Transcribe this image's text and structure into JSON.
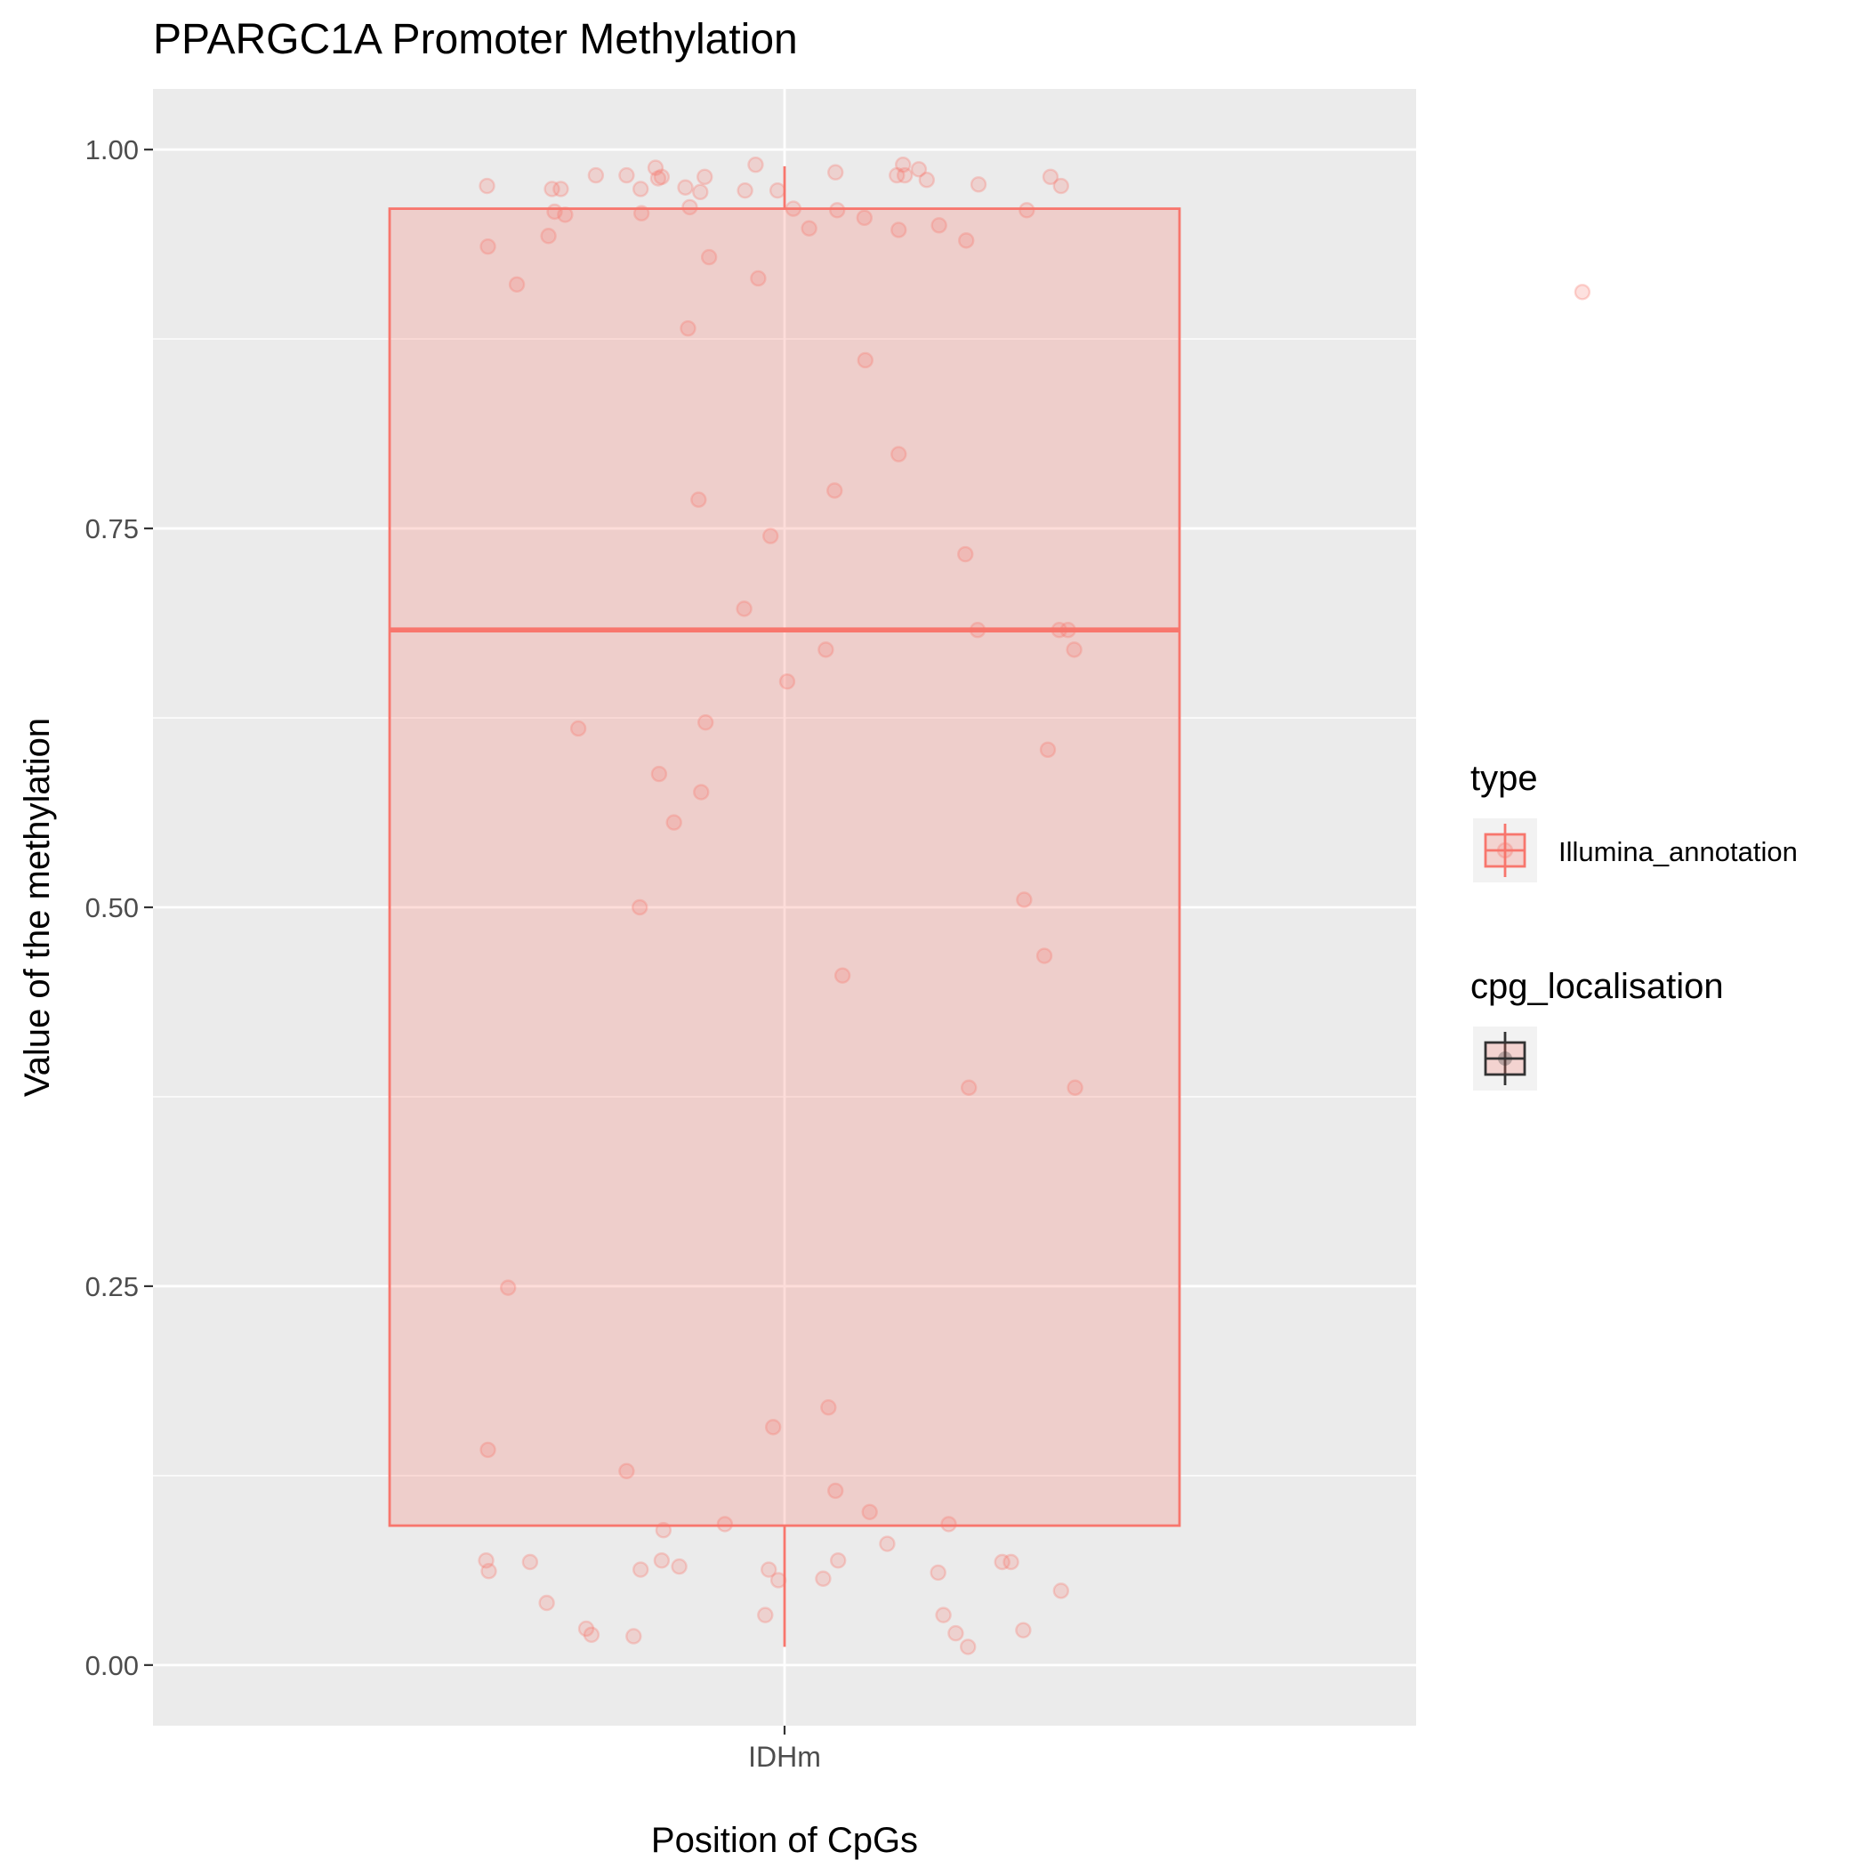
{
  "chart_data": {
    "type": "box",
    "title": "PPARGC1A Promoter Methylation",
    "xlabel": "Position of CpGs",
    "ylabel": "Value of the methylation",
    "categories": [
      "IDHm"
    ],
    "ylim": [
      -0.04,
      1.04
    ],
    "yticks": [
      0.0,
      0.25,
      0.5,
      0.75,
      1.0
    ],
    "ytick_labels": [
      "0.00",
      "0.25",
      "0.50",
      "0.75",
      "1.00"
    ],
    "grid": true,
    "legend_position": "right",
    "colors": {
      "series": "#F8766D",
      "box_fill": "#F8766D",
      "panel": "#EBEBEB",
      "grid": "#FFFFFF",
      "axis_text": "#4D4D4D",
      "legend_key": "#F2F2F2",
      "dark": "#333333"
    },
    "legends": [
      {
        "title": "type",
        "entries": [
          "Illumina_annotation"
        ]
      },
      {
        "title": "cpg_localisation",
        "entries": [
          ""
        ]
      }
    ],
    "box": {
      "category": "IDHm",
      "series": "Illumina_annotation",
      "whisker_low": 0.012,
      "q1": 0.092,
      "median": 0.683,
      "q3": 0.961,
      "whisker_high": 0.989
    },
    "points": [
      [
        -0.339,
        0.976
      ],
      [
        -0.338,
        0.936
      ],
      [
        -0.305,
        0.911
      ],
      [
        -0.269,
        0.943
      ],
      [
        -0.265,
        0.974
      ],
      [
        -0.262,
        0.959
      ],
      [
        -0.255,
        0.974
      ],
      [
        -0.25,
        0.957
      ],
      [
        -0.215,
        0.983
      ],
      [
        -0.18,
        0.983
      ],
      [
        -0.164,
        0.974
      ],
      [
        -0.163,
        0.958
      ],
      [
        -0.147,
        0.988
      ],
      [
        -0.144,
        0.981
      ],
      [
        -0.14,
        0.982
      ],
      [
        -0.113,
        0.975
      ],
      [
        -0.108,
        0.962
      ],
      [
        -0.096,
        0.972
      ],
      [
        -0.091,
        0.982
      ],
      [
        -0.086,
        0.929
      ],
      [
        -0.045,
        0.973
      ],
      [
        -0.033,
        0.99
      ],
      [
        -0.03,
        0.915
      ],
      [
        -0.008,
        0.973
      ],
      [
        0.01,
        0.961
      ],
      [
        0.028,
        0.948
      ],
      [
        0.058,
        0.985
      ],
      [
        0.06,
        0.96
      ],
      [
        0.091,
        0.955
      ],
      [
        0.128,
        0.983
      ],
      [
        0.13,
        0.947
      ],
      [
        0.135,
        0.99
      ],
      [
        0.137,
        0.983
      ],
      [
        0.153,
        0.987
      ],
      [
        0.162,
        0.98
      ],
      [
        0.176,
        0.95
      ],
      [
        0.207,
        0.94
      ],
      [
        0.221,
        0.977
      ],
      [
        0.276,
        0.96
      ],
      [
        0.303,
        0.982
      ],
      [
        0.315,
        0.976
      ],
      [
        -0.11,
        0.882
      ],
      [
        0.092,
        0.861
      ],
      [
        0.13,
        0.799
      ],
      [
        0.057,
        0.775
      ],
      [
        -0.098,
        0.769
      ],
      [
        -0.016,
        0.745
      ],
      [
        0.206,
        0.733
      ],
      [
        -0.046,
        0.697
      ],
      [
        0.22,
        0.683
      ],
      [
        0.313,
        0.683
      ],
      [
        0.323,
        0.683
      ],
      [
        0.047,
        0.67
      ],
      [
        0.33,
        0.67
      ],
      [
        0.003,
        0.649
      ],
      [
        -0.235,
        0.618
      ],
      [
        -0.09,
        0.622
      ],
      [
        0.3,
        0.604
      ],
      [
        -0.143,
        0.588
      ],
      [
        -0.095,
        0.576
      ],
      [
        -0.126,
        0.556
      ],
      [
        -0.165,
        0.5
      ],
      [
        0.273,
        0.505
      ],
      [
        0.296,
        0.468
      ],
      [
        0.066,
        0.455
      ],
      [
        0.21,
        0.381
      ],
      [
        0.331,
        0.381
      ],
      [
        0.909,
        0.906
      ],
      [
        -0.315,
        0.249
      ],
      [
        0.05,
        0.17
      ],
      [
        -0.013,
        0.157
      ],
      [
        -0.338,
        0.142
      ],
      [
        -0.18,
        0.128
      ],
      [
        0.058,
        0.115
      ],
      [
        0.097,
        0.101
      ],
      [
        -0.068,
        0.093
      ],
      [
        -0.138,
        0.089
      ],
      [
        0.187,
        0.093
      ],
      [
        -0.34,
        0.069
      ],
      [
        -0.29,
        0.068
      ],
      [
        -0.164,
        0.063
      ],
      [
        -0.14,
        0.069
      ],
      [
        -0.12,
        0.065
      ],
      [
        -0.018,
        0.063
      ],
      [
        0.061,
        0.069
      ],
      [
        0.117,
        0.08
      ],
      [
        0.175,
        0.061
      ],
      [
        0.248,
        0.068
      ],
      [
        0.258,
        0.068
      ],
      [
        -0.337,
        0.062
      ],
      [
        -0.271,
        0.041
      ],
      [
        -0.007,
        0.056
      ],
      [
        0.044,
        0.057
      ],
      [
        0.315,
        0.049
      ],
      [
        -0.226,
        0.024
      ],
      [
        -0.22,
        0.02
      ],
      [
        -0.172,
        0.019
      ],
      [
        -0.022,
        0.033
      ],
      [
        0.181,
        0.033
      ],
      [
        0.195,
        0.021
      ],
      [
        0.209,
        0.012
      ],
      [
        0.272,
        0.023
      ]
    ]
  }
}
